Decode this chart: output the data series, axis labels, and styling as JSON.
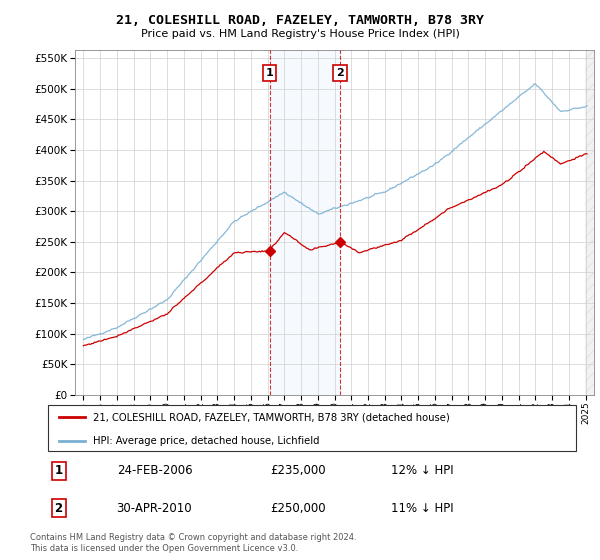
{
  "title": "21, COLESHILL ROAD, FAZELEY, TAMWORTH, B78 3RY",
  "subtitle": "Price paid vs. HM Land Registry's House Price Index (HPI)",
  "legend_line1": "21, COLESHILL ROAD, FAZELEY, TAMWORTH, B78 3RY (detached house)",
  "legend_line2": "HPI: Average price, detached house, Lichfield",
  "transaction1_date": "24-FEB-2006",
  "transaction1_price": "£235,000",
  "transaction1_hpi": "12% ↓ HPI",
  "transaction2_date": "30-APR-2010",
  "transaction2_price": "£250,000",
  "transaction2_hpi": "11% ↓ HPI",
  "footer": "Contains HM Land Registry data © Crown copyright and database right 2024.\nThis data is licensed under the Open Government Licence v3.0.",
  "red_color": "#cc0000",
  "blue_color": "#7ab0d4",
  "shaded_region_color": "#ddeeff",
  "marker1_x_year": 2006.12,
  "marker2_x_year": 2010.33,
  "transaction1_price_val": 235000,
  "transaction2_price_val": 250000,
  "ylim_min": 0,
  "ylim_max": 562500,
  "xlim_min": 1994.5,
  "xlim_max": 2025.5
}
